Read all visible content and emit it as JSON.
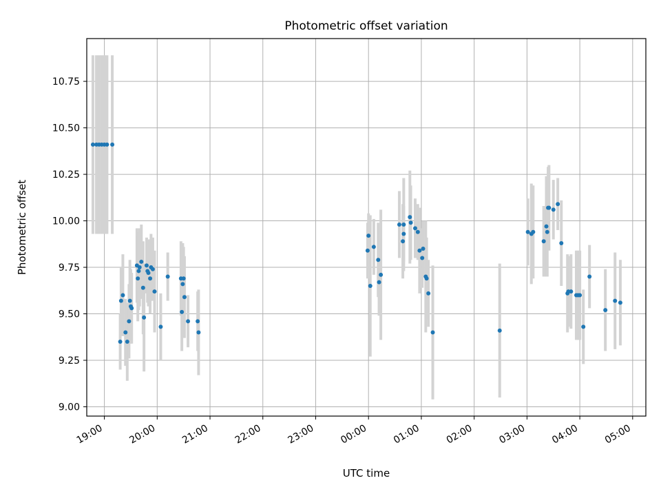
{
  "chart_data": {
    "type": "scatter",
    "title": "Photometric offset variation",
    "xlabel": "UTC time",
    "ylabel": "Photometric offset",
    "grid": true,
    "x_unit": "hours (UTC, continuing past midnight)",
    "xlim": [
      "18:40",
      "05:15"
    ],
    "ylim": [
      8.95,
      10.98
    ],
    "xticks": [
      "19:00",
      "20:00",
      "21:00",
      "22:00",
      "23:00",
      "00:00",
      "01:00",
      "02:00",
      "03:00",
      "04:00",
      "05:00"
    ],
    "yticks": [
      "9.00",
      "9.25",
      "9.50",
      "9.75",
      "10.00",
      "10.25",
      "10.50",
      "10.75"
    ],
    "colors": {
      "point": "#1f77b4",
      "errorbar": "#d3d3d3",
      "grid": "#b0b0b0"
    },
    "series": [
      {
        "points": [
          {
            "x": "18:47",
            "y": 10.41,
            "err": 0.48
          },
          {
            "x": "18:51",
            "y": 10.41,
            "err": 0.48
          },
          {
            "x": "18:54",
            "y": 10.41,
            "err": 0.48
          },
          {
            "x": "18:57",
            "y": 10.41,
            "err": 0.48
          },
          {
            "x": "19:00",
            "y": 10.41,
            "err": 0.48
          },
          {
            "x": "19:03",
            "y": 10.41,
            "err": 0.48
          },
          {
            "x": "19:09",
            "y": 10.41,
            "err": 0.48
          },
          {
            "x": "19:18",
            "y": 9.35,
            "err": 0.15
          },
          {
            "x": "19:19",
            "y": 9.57,
            "err": 0.18
          },
          {
            "x": "19:21",
            "y": 9.6,
            "err": 0.22
          },
          {
            "x": "19:24",
            "y": 9.4,
            "err": 0.18
          },
          {
            "x": "19:26",
            "y": 9.35,
            "err": 0.21
          },
          {
            "x": "19:28",
            "y": 9.46,
            "err": 0.2
          },
          {
            "x": "19:29",
            "y": 9.57,
            "err": 0.22
          },
          {
            "x": "19:30",
            "y": 9.54,
            "err": 0.2
          },
          {
            "x": "19:31",
            "y": 9.53,
            "err": 0.19
          },
          {
            "x": "19:37",
            "y": 9.76,
            "err": 0.2
          },
          {
            "x": "19:38",
            "y": 9.69,
            "err": 0.23
          },
          {
            "x": "19:39",
            "y": 9.73,
            "err": 0.21
          },
          {
            "x": "19:40",
            "y": 9.75,
            "err": 0.21
          },
          {
            "x": "19:42",
            "y": 9.78,
            "err": 0.2
          },
          {
            "x": "19:44",
            "y": 9.64,
            "err": 0.25
          },
          {
            "x": "19:45",
            "y": 9.48,
            "err": 0.29
          },
          {
            "x": "19:48",
            "y": 9.76,
            "err": 0.15
          },
          {
            "x": "19:49",
            "y": 9.73,
            "err": 0.17
          },
          {
            "x": "19:50",
            "y": 9.72,
            "err": 0.18
          },
          {
            "x": "19:52",
            "y": 9.69,
            "err": 0.19
          },
          {
            "x": "19:53",
            "y": 9.75,
            "err": 0.18
          },
          {
            "x": "19:55",
            "y": 9.74,
            "err": 0.17
          },
          {
            "x": "19:57",
            "y": 9.62,
            "err": 0.22
          },
          {
            "x": "20:04",
            "y": 9.43,
            "err": 0.18
          },
          {
            "x": "20:12",
            "y": 9.7,
            "err": 0.13
          },
          {
            "x": "20:27",
            "y": 9.69,
            "err": 0.2
          },
          {
            "x": "20:28",
            "y": 9.51,
            "err": 0.21
          },
          {
            "x": "20:29",
            "y": 9.66,
            "err": 0.22
          },
          {
            "x": "20:30",
            "y": 9.69,
            "err": 0.17
          },
          {
            "x": "20:31",
            "y": 9.59,
            "err": 0.22
          },
          {
            "x": "20:35",
            "y": 9.46,
            "err": 0.14
          },
          {
            "x": "20:46",
            "y": 9.46,
            "err": 0.16
          },
          {
            "x": "20:47",
            "y": 9.4,
            "err": 0.23
          },
          {
            "x": "23:59",
            "y": 9.84,
            "err": 0.15
          },
          {
            "x": "00:00",
            "y": 9.92,
            "err": 0.12
          },
          {
            "x": "00:02",
            "y": 9.65,
            "err": 0.38
          },
          {
            "x": "00:06",
            "y": 9.86,
            "err": 0.15
          },
          {
            "x": "00:11",
            "y": 9.79,
            "err": 0.2
          },
          {
            "x": "00:12",
            "y": 9.67,
            "err": 0.18
          },
          {
            "x": "00:14",
            "y": 9.71,
            "err": 0.35
          },
          {
            "x": "00:35",
            "y": 9.98,
            "err": 0.18
          },
          {
            "x": "00:39",
            "y": 9.89,
            "err": 0.2
          },
          {
            "x": "00:40",
            "y": 9.98,
            "err": 0.25
          },
          {
            "x": "00:40",
            "y": 9.93,
            "err": 0.15
          },
          {
            "x": "00:47",
            "y": 10.02,
            "err": 0.25
          },
          {
            "x": "00:48",
            "y": 9.99,
            "err": 0.2
          },
          {
            "x": "00:53",
            "y": 9.96,
            "err": 0.16
          },
          {
            "x": "00:56",
            "y": 9.94,
            "err": 0.15
          },
          {
            "x": "00:58",
            "y": 9.84,
            "err": 0.23
          },
          {
            "x": "01:01",
            "y": 9.8,
            "err": 0.16
          },
          {
            "x": "01:02",
            "y": 9.85,
            "err": 0.15
          },
          {
            "x": "01:05",
            "y": 9.7,
            "err": 0.3
          },
          {
            "x": "01:06",
            "y": 9.69,
            "err": 0.22
          },
          {
            "x": "01:08",
            "y": 9.61,
            "err": 0.18
          },
          {
            "x": "01:13",
            "y": 9.4,
            "err": 0.36
          },
          {
            "x": "02:29",
            "y": 9.41,
            "err": 0.36
          },
          {
            "x": "03:01",
            "y": 9.94,
            "err": 0.18
          },
          {
            "x": "03:05",
            "y": 9.93,
            "err": 0.27
          },
          {
            "x": "03:07",
            "y": 9.94,
            "err": 0.25
          },
          {
            "x": "03:19",
            "y": 9.89,
            "err": 0.19
          },
          {
            "x": "03:22",
            "y": 9.97,
            "err": 0.27
          },
          {
            "x": "03:23",
            "y": 9.94,
            "err": 0.24
          },
          {
            "x": "03:24",
            "y": 10.07,
            "err": 0.22
          },
          {
            "x": "03:25",
            "y": 10.07,
            "err": 0.23
          },
          {
            "x": "03:30",
            "y": 10.06,
            "err": 0.16
          },
          {
            "x": "03:35",
            "y": 10.09,
            "err": 0.14
          },
          {
            "x": "03:39",
            "y": 9.88,
            "err": 0.23
          },
          {
            "x": "03:46",
            "y": 9.61,
            "err": 0.21
          },
          {
            "x": "03:47",
            "y": 9.62,
            "err": 0.19
          },
          {
            "x": "03:50",
            "y": 9.62,
            "err": 0.2
          },
          {
            "x": "03:56",
            "y": 9.6,
            "err": 0.24
          },
          {
            "x": "03:58",
            "y": 9.6,
            "err": 0.24
          },
          {
            "x": "04:00",
            "y": 9.6,
            "err": 0.24
          },
          {
            "x": "04:04",
            "y": 9.43,
            "err": 0.2
          },
          {
            "x": "04:11",
            "y": 9.7,
            "err": 0.17
          },
          {
            "x": "04:29",
            "y": 9.52,
            "err": 0.22
          },
          {
            "x": "04:40",
            "y": 9.57,
            "err": 0.26
          },
          {
            "x": "04:46",
            "y": 9.56,
            "err": 0.23
          }
        ]
      }
    ]
  }
}
